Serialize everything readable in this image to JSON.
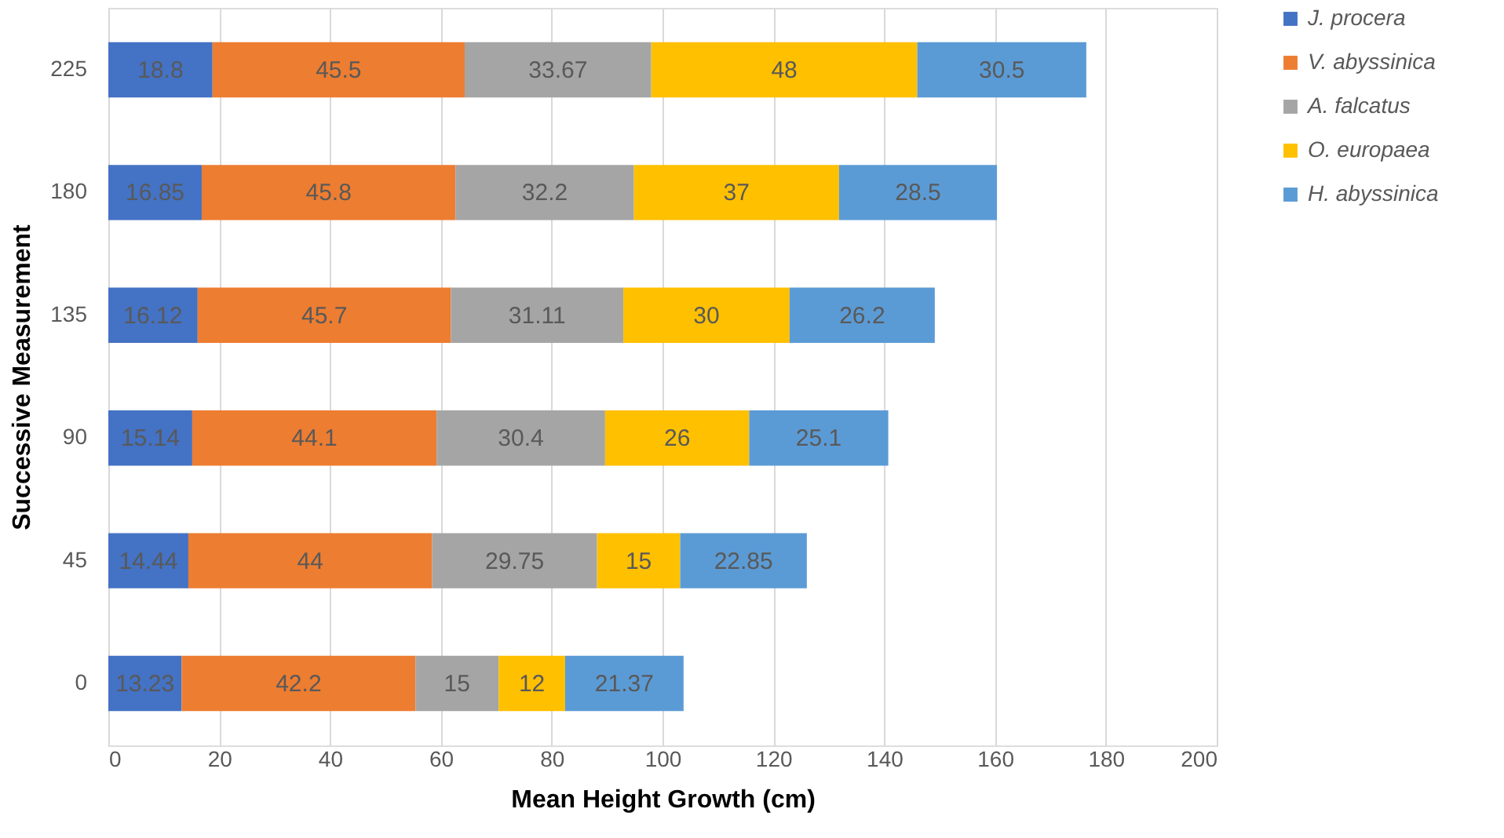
{
  "chart_data": {
    "type": "bar",
    "orientation": "horizontal",
    "stacked": true,
    "xlabel": "Mean Height Growth (cm)",
    "ylabel": "Successive Measurement",
    "categories": [
      "225",
      "180",
      "135",
      "90",
      "45",
      "0"
    ],
    "series": [
      {
        "name": "J. procera",
        "color": "#4472c4",
        "values": [
          18.8,
          16.85,
          16.12,
          15.14,
          14.44,
          13.23
        ]
      },
      {
        "name": "V. abyssinica",
        "color": "#ed7d31",
        "values": [
          45.5,
          45.8,
          45.7,
          44.1,
          44,
          42.2
        ]
      },
      {
        "name": "A. falcatus",
        "color": "#a5a5a5",
        "values": [
          33.67,
          32.2,
          31.11,
          30.4,
          29.75,
          15
        ]
      },
      {
        "name": "O. europaea",
        "color": "#ffc000",
        "values": [
          48,
          37,
          30,
          26,
          15,
          12
        ]
      },
      {
        "name": "H. abyssinica",
        "color": "#5b9bd5",
        "values": [
          30.5,
          28.5,
          26.2,
          25.1,
          22.85,
          21.37
        ]
      }
    ],
    "xlim": [
      0,
      200
    ],
    "xticks": [
      0,
      20,
      40,
      60,
      80,
      100,
      120,
      140,
      160,
      180,
      200
    ],
    "grid": "x",
    "legend": "right",
    "data_labels": true
  }
}
